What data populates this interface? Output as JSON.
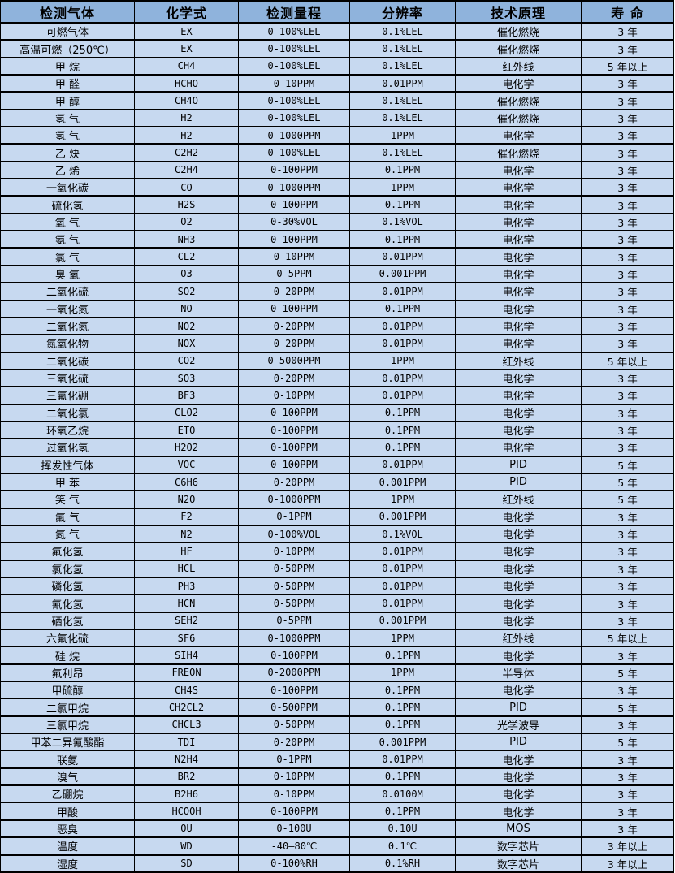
{
  "colors": {
    "header_bg": "#8fb3dc",
    "row_bg": "#c7d9f0",
    "border": "#000000",
    "text": "#000000"
  },
  "table": {
    "headers": [
      "检测气体",
      "化学式",
      "检测量程",
      "分辨率",
      "技术原理",
      "寿 命"
    ],
    "column_names": [
      "cell-gas-name",
      "cell-chemical-formula",
      "cell-detection-range",
      "cell-resolution",
      "cell-technology",
      "cell-lifespan"
    ],
    "rows": [
      [
        "可燃气体",
        "EX",
        "0-100%LEL",
        "0.1%LEL",
        "催化燃烧",
        "3 年"
      ],
      [
        "高温可燃（250℃）",
        "EX",
        "0-100%LEL",
        "0.1%LEL",
        "催化燃烧",
        "3 年"
      ],
      [
        "甲 烷",
        "CH4",
        "0-100%LEL",
        "0.1%LEL",
        "红外线",
        "5 年以上"
      ],
      [
        "甲 醛",
        "HCHO",
        "0-10PPM",
        "0.01PPM",
        "电化学",
        "3 年"
      ],
      [
        "甲 醇",
        "CH4O",
        "0-100%LEL",
        "0.1%LEL",
        "催化燃烧",
        "3 年"
      ],
      [
        "氢 气",
        "H2",
        "0-100%LEL",
        "0.1%LEL",
        "催化燃烧",
        "3 年"
      ],
      [
        "氢 气",
        "H2",
        "0-1000PPM",
        "1PPM",
        "电化学",
        "3 年"
      ],
      [
        "乙 炔",
        "C2H2",
        "0-100%LEL",
        "0.1%LEL",
        "催化燃烧",
        "3 年"
      ],
      [
        "乙 烯",
        "C2H4",
        "0-100PPM",
        "0.1PPM",
        "电化学",
        "3 年"
      ],
      [
        "一氧化碳",
        "CO",
        "0-1000PPM",
        "1PPM",
        "电化学",
        "3 年"
      ],
      [
        "硫化氢",
        "H2S",
        "0-100PPM",
        "0.1PPM",
        "电化学",
        "3 年"
      ],
      [
        "氧 气",
        "O2",
        "0-30%VOL",
        "0.1%VOL",
        "电化学",
        "3 年"
      ],
      [
        "氨 气",
        "NH3",
        "0-100PPM",
        "0.1PPM",
        "电化学",
        "3 年"
      ],
      [
        "氯 气",
        "CL2",
        "0-10PPM",
        "0.01PPM",
        "电化学",
        "3 年"
      ],
      [
        "臭 氧",
        "O3",
        "0-5PPM",
        "0.001PPM",
        "电化学",
        "3 年"
      ],
      [
        "二氧化硫",
        "SO2",
        "0-20PPM",
        "0.01PPM",
        "电化学",
        "3 年"
      ],
      [
        "一氧化氮",
        "NO",
        "0-100PPM",
        "0.1PPM",
        "电化学",
        "3 年"
      ],
      [
        "二氧化氮",
        "NO2",
        "0-20PPM",
        "0.01PPM",
        "电化学",
        "3 年"
      ],
      [
        "氮氧化物",
        "NOX",
        "0-20PPM",
        "0.01PPM",
        "电化学",
        "3 年"
      ],
      [
        "二氧化碳",
        "CO2",
        "0-5000PPM",
        "1PPM",
        "红外线",
        "5 年以上"
      ],
      [
        "三氧化硫",
        "SO3",
        "0-20PPM",
        "0.01PPM",
        "电化学",
        "3 年"
      ],
      [
        "三氟化硼",
        "BF3",
        "0-10PPM",
        "0.01PPM",
        "电化学",
        "3 年"
      ],
      [
        "二氧化氯",
        "CLO2",
        "0-100PPM",
        "0.1PPM",
        "电化学",
        "3 年"
      ],
      [
        "环氧乙烷",
        "ETO",
        "0-100PPM",
        "0.1PPM",
        "电化学",
        "3 年"
      ],
      [
        "过氧化氢",
        "H2O2",
        "0-100PPM",
        "0.1PPM",
        "电化学",
        "3 年"
      ],
      [
        "挥发性气体",
        "VOC",
        "0-100PPM",
        "0.01PPM",
        "PID",
        "5 年"
      ],
      [
        "甲 苯",
        "C6H6",
        "0-20PPM",
        "0.001PPM",
        "PID",
        "5 年"
      ],
      [
        "笑 气",
        "N2O",
        "0-1000PPM",
        "1PPM",
        "红外线",
        "5 年"
      ],
      [
        "氟 气",
        "F2",
        "0-1PPM",
        "0.001PPM",
        "电化学",
        "3 年"
      ],
      [
        "氮 气",
        "N2",
        "0-100%VOL",
        "0.1%VOL",
        "电化学",
        "3 年"
      ],
      [
        "氟化氢",
        "HF",
        "0-10PPM",
        "0.01PPM",
        "电化学",
        "3 年"
      ],
      [
        "氯化氢",
        "HCL",
        "0-50PPM",
        "0.01PPM",
        "电化学",
        "3 年"
      ],
      [
        "磷化氢",
        "PH3",
        "0-50PPM",
        "0.01PPM",
        "电化学",
        "3 年"
      ],
      [
        "氰化氢",
        "HCN",
        "0-50PPM",
        "0.01PPM",
        "电化学",
        "3 年"
      ],
      [
        "硒化氢",
        "SEH2",
        "0-5PPM",
        "0.001PPM",
        "电化学",
        "3 年"
      ],
      [
        "六氟化硫",
        "SF6",
        "0-1000PPM",
        "1PPM",
        "红外线",
        "5 年以上"
      ],
      [
        "硅 烷",
        "SIH4",
        "0-100PPM",
        "0.1PPM",
        "电化学",
        "3 年"
      ],
      [
        "氟利昂",
        "FREON",
        "0-2000PPM",
        "1PPM",
        "半导体",
        "5 年"
      ],
      [
        "甲硫醇",
        "CH4S",
        "0-100PPM",
        "0.1PPM",
        "电化学",
        "3 年"
      ],
      [
        "二氯甲烷",
        "CH2CL2",
        "0-500PPM",
        "0.1PPM",
        "PID",
        "5 年"
      ],
      [
        "三氯甲烷",
        "CHCL3",
        "0-50PPM",
        "0.1PPM",
        "光学波导",
        "3 年"
      ],
      [
        "甲苯二异氰酸酯",
        "TDI",
        "0-20PPM",
        "0.001PPM",
        "PID",
        "5 年"
      ],
      [
        "联氨",
        "N2H4",
        "0-1PPM",
        "0.01PPM",
        "电化学",
        "3 年"
      ],
      [
        "溴气",
        "BR2",
        "0-10PPM",
        "0.1PPM",
        "电化学",
        "3 年"
      ],
      [
        "乙硼烷",
        "B2H6",
        "0-10PPM",
        "0.0100M",
        "电化学",
        "3 年"
      ],
      [
        "甲酸",
        "HCOOH",
        "0-100PPM",
        "0.1PPM",
        "电化学",
        "3 年"
      ],
      [
        "恶臭",
        "OU",
        "0-100U",
        "0.10U",
        "MOS",
        "3 年"
      ],
      [
        "温度",
        "WD",
        "-40—80℃",
        "0.1℃",
        "数字芯片",
        "3 年以上"
      ],
      [
        "湿度",
        "SD",
        "0-100%RH",
        "0.1%RH",
        "数字芯片",
        "3 年以上"
      ]
    ]
  }
}
